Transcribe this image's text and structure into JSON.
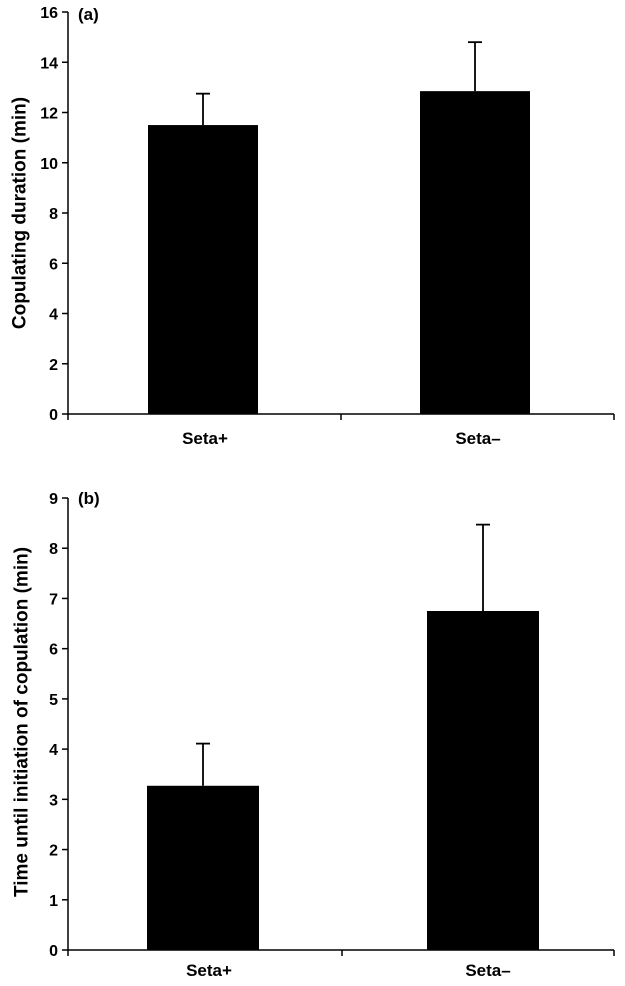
{
  "chart_data": [
    {
      "type": "bar",
      "panel_label": "(a)",
      "categories": [
        "Seta+",
        "Seta–"
      ],
      "series": [
        {
          "values": [
            11.5,
            12.85
          ],
          "error": [
            1.25,
            1.95
          ]
        }
      ],
      "ylabel": "Copulating duration (min)",
      "ylim": [
        0,
        16
      ],
      "yticks": [
        0,
        2,
        4,
        6,
        8,
        10,
        12,
        14,
        16
      ],
      "ytick_labels": [
        "0",
        "2",
        "4",
        "6",
        "8",
        "10",
        "12",
        "14",
        "16"
      ],
      "bar_color": "#000000",
      "grid": false
    },
    {
      "type": "bar",
      "panel_label": "(b)",
      "categories": [
        "Seta+",
        "Seta–"
      ],
      "series": [
        {
          "values": [
            3.27,
            6.75
          ],
          "error": [
            0.84,
            1.72
          ]
        }
      ],
      "ylabel": "Time until initiation of copulation (min)",
      "ylim": [
        0,
        9
      ],
      "yticks": [
        0,
        1,
        2,
        3,
        4,
        5,
        6,
        7,
        8,
        9
      ],
      "ytick_labels": [
        "0",
        "1",
        "2",
        "3",
        "4",
        "5",
        "6",
        "7",
        "8",
        "9"
      ],
      "bar_color": "#000000",
      "grid": false
    }
  ]
}
